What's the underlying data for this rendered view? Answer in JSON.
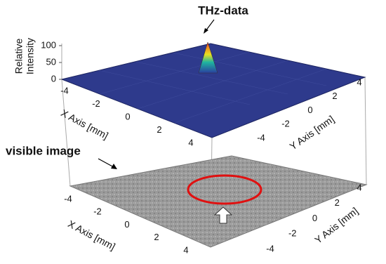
{
  "annotations": {
    "thz": "THz-data",
    "visible": "visible image"
  },
  "top_plot": {
    "z_label": [
      "Relative",
      "Intensity"
    ],
    "z_ticks": [
      0,
      50,
      100
    ],
    "x_label": "X Axis [mm]",
    "x_ticks": [
      -4,
      -2,
      0,
      2,
      4
    ],
    "y_label": "Y Axis [mm]",
    "y_ticks": [
      -4,
      -2,
      0,
      2,
      4
    ]
  },
  "bottom_plot": {
    "x_label": "X Axis [mm]",
    "x_ticks": [
      -4,
      -2,
      0,
      2,
      4
    ],
    "y_label": "Y Axis [mm]",
    "y_ticks": [
      -4,
      -2,
      0,
      2,
      4
    ]
  }
}
